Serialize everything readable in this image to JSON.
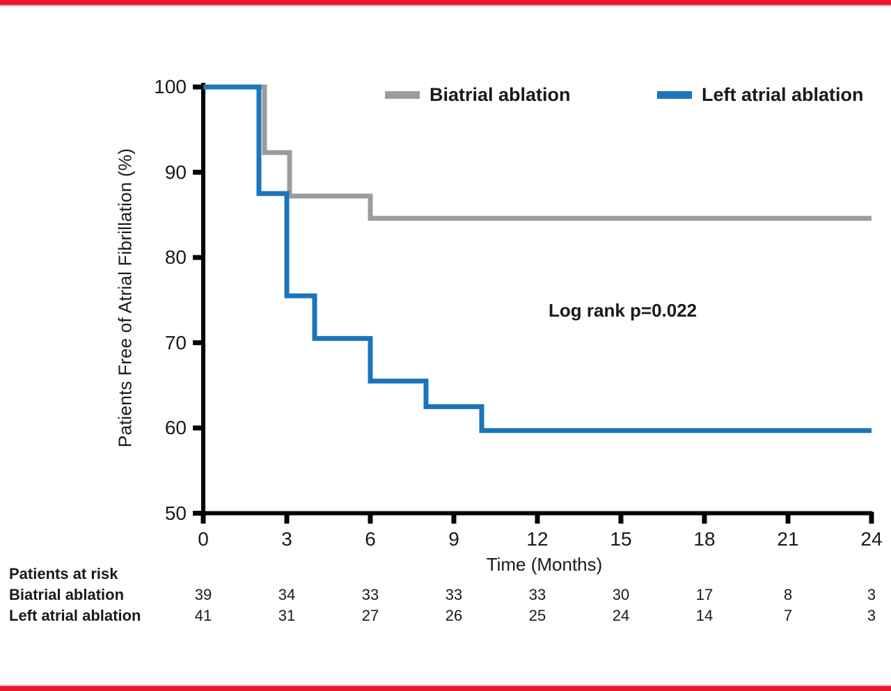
{
  "page": {
    "accent_color": "#e8192b",
    "text_color": "#1a1a1a",
    "axis_color": "#000000"
  },
  "chart_data": {
    "type": "line",
    "subtype": "kaplan-meier-step",
    "title": "",
    "xlabel": "Time (Months)",
    "ylabel": "Patients Free of Atrial Fibrillation (%)",
    "xlim": [
      0,
      24
    ],
    "ylim": [
      50,
      100
    ],
    "xticks": [
      0,
      3,
      6,
      9,
      12,
      15,
      18,
      21,
      24
    ],
    "yticks": [
      100,
      90,
      80,
      70,
      60,
      50
    ],
    "grid": false,
    "legend_position": "top-inside",
    "annotation": "Log rank p=0.022",
    "series": [
      {
        "name": "Biatrial ablation",
        "color": "#9a9c9e",
        "points": [
          [
            0,
            100
          ],
          [
            2.2,
            100
          ],
          [
            2.2,
            92.3
          ],
          [
            3.1,
            92.3
          ],
          [
            3.1,
            87.2
          ],
          [
            6,
            87.2
          ],
          [
            6,
            84.6
          ],
          [
            24,
            84.6
          ]
        ]
      },
      {
        "name": "Left atrial ablation",
        "color": "#1b75bb",
        "points": [
          [
            0,
            100
          ],
          [
            2,
            100
          ],
          [
            2,
            87.5
          ],
          [
            3,
            87.5
          ],
          [
            3,
            75.5
          ],
          [
            4,
            75.5
          ],
          [
            4,
            70.5
          ],
          [
            6,
            70.5
          ],
          [
            6,
            65.5
          ],
          [
            8,
            65.5
          ],
          [
            8,
            62.5
          ],
          [
            10,
            62.5
          ],
          [
            10,
            59.7
          ],
          [
            24,
            59.7
          ]
        ]
      }
    ],
    "risk_table": {
      "heading": "Patients at risk",
      "time_points": [
        0,
        3,
        6,
        9,
        12,
        15,
        18,
        21,
        24
      ],
      "rows": [
        {
          "label": "Biatrial ablation",
          "counts": [
            39,
            34,
            33,
            33,
            33,
            30,
            17,
            8,
            3
          ]
        },
        {
          "label": "Left atrial ablation",
          "counts": [
            41,
            31,
            27,
            26,
            25,
            24,
            14,
            7,
            3
          ]
        }
      ]
    }
  }
}
